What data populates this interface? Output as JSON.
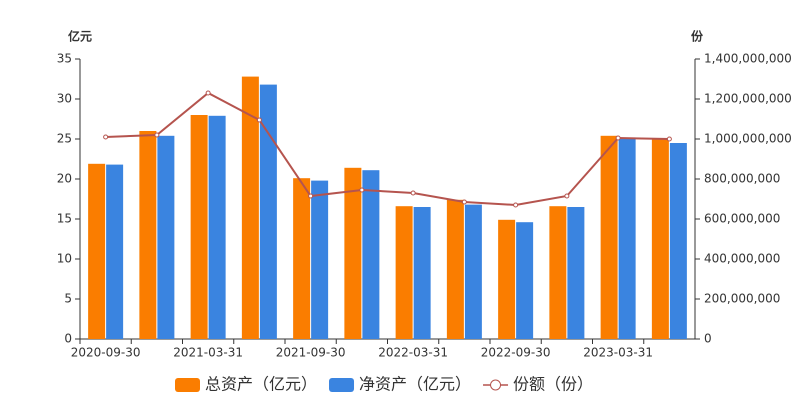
{
  "chart_data": {
    "type": "bar",
    "categories": [
      "2020-09-30",
      null,
      "2021-03-31",
      null,
      "2021-09-30",
      null,
      "2022-03-31",
      null,
      "2022-09-30",
      null,
      "2023-03-31",
      null
    ],
    "y_label": "亿元",
    "y2_label": "份",
    "ylim": [
      0,
      35
    ],
    "yticks": [
      0,
      5,
      10,
      15,
      20,
      25,
      30,
      35
    ],
    "y2lim": [
      0,
      1400000000
    ],
    "y2ticks": [
      0,
      {
        "value": 200000000,
        "label": "200,000,000"
      },
      {
        "value": 400000000,
        "label": "400,000,000"
      },
      {
        "value": 600000000,
        "label": "600,000,000"
      },
      {
        "value": 800000000,
        "label": "800,000,000"
      },
      {
        "value": 1000000000,
        "label": "1,000,000,000"
      },
      {
        "value": 1200000000,
        "label": "1,200,000,000"
      },
      {
        "value": 1400000000,
        "label": "1,400,000,000"
      }
    ],
    "series": [
      {
        "name": "总资产（亿元）",
        "type": "bar",
        "color": "#fa7d00",
        "values": [
          21.9,
          26.0,
          28.0,
          32.8,
          20.1,
          21.4,
          16.6,
          17.4,
          14.9,
          16.6,
          25.4,
          25.0
        ]
      },
      {
        "name": "净资产（亿元）",
        "type": "bar",
        "color": "#3a84e0",
        "values": [
          21.8,
          25.4,
          27.9,
          31.8,
          19.8,
          21.1,
          16.5,
          16.8,
          14.6,
          16.5,
          25.0,
          24.5
        ]
      },
      {
        "name": "份额（份）",
        "type": "line",
        "axis": "y2",
        "color": "#b5544e",
        "values": [
          1010000000,
          1020000000,
          1230000000,
          1095000000,
          715000000,
          745000000,
          730000000,
          685000000,
          670000000,
          715000000,
          1005000000,
          1000000000
        ]
      }
    ]
  }
}
